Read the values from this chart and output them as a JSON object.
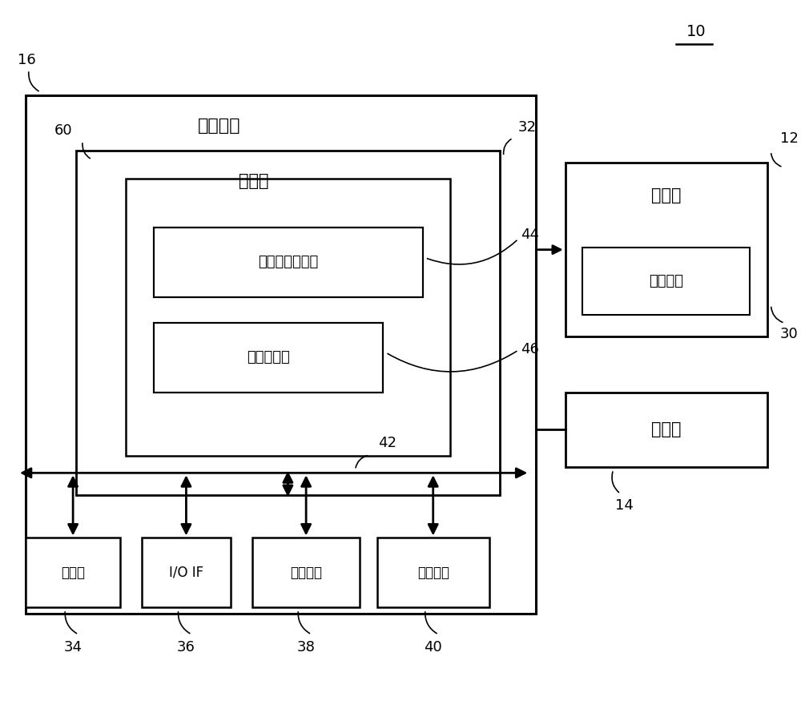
{
  "bg_color": "#ffffff",
  "label_10": "10",
  "label_16": "16",
  "label_12": "12",
  "label_14": "14",
  "label_30": "30",
  "label_32": "32",
  "label_34": "34",
  "label_36": "36",
  "label_38": "38",
  "label_40": "40",
  "label_42": "42",
  "label_44": "44",
  "label_46": "46",
  "label_60": "60",
  "text_control": "控制装置",
  "text_processor": "处理器",
  "text_detect": "检测数据获取部",
  "text_assoc": "关联生成部",
  "text_robot": "机器人",
  "text_servo": "伺服马达",
  "text_sensor": "传感器",
  "text_storage": "存储器",
  "text_io": "I/O IF",
  "text_display": "显示装置",
  "text_input": "输入装置",
  "line_color": "#000000",
  "box_facecolor": "#ffffff",
  "box_edgecolor": "#000000",
  "font_size_main": 15,
  "font_size_label": 12,
  "font_size_small": 13
}
